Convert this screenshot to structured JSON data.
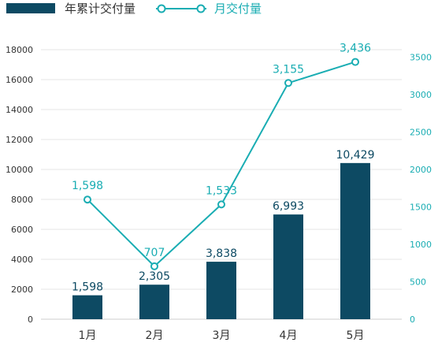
{
  "chart_data": {
    "type": "bar+line",
    "categories": [
      "1月",
      "2月",
      "3月",
      "4月",
      "5月"
    ],
    "series": [
      {
        "name": "年累计交付量",
        "type": "bar",
        "axis": "left",
        "values": [
          1598,
          2305,
          3838,
          6993,
          10429
        ],
        "labels": [
          "1,598",
          "2,305",
          "3,838",
          "6,993",
          "10,429"
        ]
      },
      {
        "name": "月交付量",
        "type": "line",
        "axis": "right",
        "values": [
          1598,
          707,
          1533,
          3155,
          3436
        ],
        "labels": [
          "1,598",
          "707",
          "1,533",
          "3,155",
          "3,436"
        ]
      }
    ],
    "y_left": {
      "range": [
        0,
        18000
      ],
      "ticks": [
        "0",
        "2000",
        "4000",
        "6000",
        "8000",
        "10000",
        "12000",
        "14000",
        "16000",
        "18000"
      ]
    },
    "y_right": {
      "range": [
        0,
        3600
      ],
      "ticks": [
        "0",
        "500",
        "1000",
        "1500",
        "2000",
        "2500",
        "3000",
        "3500"
      ]
    },
    "legend_position": "top-left",
    "grid": true
  },
  "colors": {
    "bar": "#0d4a63",
    "line": "#1aadb3",
    "grid": "#e6e6e6",
    "axis": "#cccccc",
    "text": "#333333"
  }
}
